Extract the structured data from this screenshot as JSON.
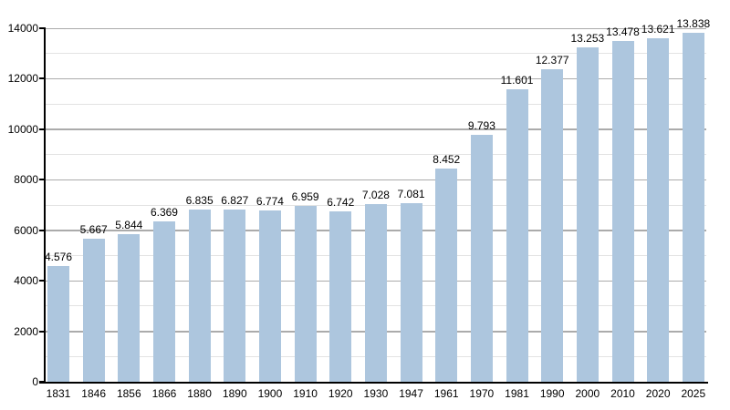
{
  "chart_data": {
    "type": "bar",
    "title": "",
    "xlabel": "",
    "ylabel": "",
    "categories": [
      "1831",
      "1846",
      "1856",
      "1866",
      "1880",
      "1890",
      "1900",
      "1910",
      "1920",
      "1930",
      "1947",
      "1961",
      "1970",
      "1981",
      "1990",
      "2000",
      "2010",
      "2020",
      "2025"
    ],
    "values": [
      4576,
      5667,
      5844,
      6369,
      6835,
      6827,
      6774,
      6959,
      6742,
      7028,
      7081,
      8452,
      9793,
      11601,
      12377,
      13253,
      13478,
      13621,
      13838
    ],
    "value_labels": [
      "4.576",
      "5.667",
      "5.844",
      "6.369",
      "6.835",
      "6.827",
      "6.774",
      "6.959",
      "6.742",
      "7.028",
      "7.081",
      "8.452",
      "9.793",
      "11.601",
      "12.377",
      "13.253",
      "13.478",
      "13.621",
      "13.838"
    ],
    "ylim": [
      0,
      14000
    ],
    "y_tick_step": 2000,
    "y_tick_labels": [
      "0",
      "2000",
      "4000",
      "6000",
      "8000",
      "10000",
      "12000",
      "14000"
    ],
    "minor_grid_step": 1000,
    "grid": true,
    "legend": "none",
    "colors": {
      "bar_fill": "#adc6de",
      "major_grid": "#ababab",
      "minor_grid": "#e3e3e3",
      "axis": "#000000",
      "background": "#ffffff",
      "text": "#000000"
    }
  }
}
